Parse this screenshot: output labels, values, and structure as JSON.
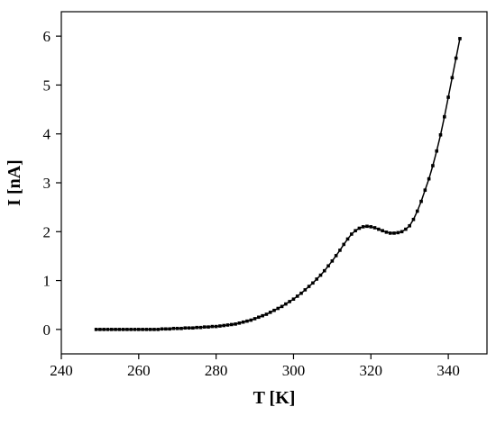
{
  "chart_data": {
    "type": "line",
    "xlabel": "T [K]",
    "ylabel": "I [nA]",
    "x": [
      249,
      250,
      251,
      252,
      253,
      254,
      255,
      256,
      257,
      258,
      259,
      260,
      261,
      262,
      263,
      264,
      265,
      266,
      267,
      268,
      269,
      270,
      271,
      272,
      273,
      274,
      275,
      276,
      277,
      278,
      279,
      280,
      281,
      282,
      283,
      284,
      285,
      286,
      287,
      288,
      289,
      290,
      291,
      292,
      293,
      294,
      295,
      296,
      297,
      298,
      299,
      300,
      301,
      302,
      303,
      304,
      305,
      306,
      307,
      308,
      309,
      310,
      311,
      312,
      313,
      314,
      315,
      316,
      317,
      318,
      319,
      320,
      321,
      322,
      323,
      324,
      325,
      326,
      327,
      328,
      329,
      330,
      331,
      332,
      333,
      334,
      335,
      336,
      337,
      338,
      339,
      340,
      341,
      342,
      343
    ],
    "series": [
      {
        "name": "I",
        "color": "#000000",
        "values": [
          0,
          0,
          0,
          0,
          0,
          0,
          0,
          0,
          0,
          0,
          0,
          0,
          0,
          0,
          0,
          0,
          0,
          0.01,
          0.01,
          0.01,
          0.02,
          0.02,
          0.02,
          0.03,
          0.03,
          0.03,
          0.04,
          0.04,
          0.05,
          0.05,
          0.06,
          0.06,
          0.07,
          0.08,
          0.09,
          0.1,
          0.11,
          0.13,
          0.15,
          0.17,
          0.19,
          0.22,
          0.25,
          0.28,
          0.31,
          0.35,
          0.39,
          0.43,
          0.47,
          0.52,
          0.57,
          0.62,
          0.68,
          0.74,
          0.81,
          0.88,
          0.95,
          1.03,
          1.11,
          1.2,
          1.3,
          1.4,
          1.51,
          1.62,
          1.74,
          1.85,
          1.95,
          2.02,
          2.07,
          2.1,
          2.11,
          2.1,
          2.08,
          2.05,
          2.02,
          1.99,
          1.97,
          1.97,
          1.98,
          2.0,
          2.05,
          2.12,
          2.25,
          2.42,
          2.62,
          2.85,
          3.08,
          3.35,
          3.65,
          3.98,
          4.35,
          4.75,
          5.15,
          5.55,
          5.95
        ]
      }
    ],
    "xlim": [
      240,
      350
    ],
    "xticks": [
      240,
      260,
      280,
      300,
      320,
      340
    ],
    "ylim": [
      -0.5,
      6.5
    ],
    "yticks": [
      0,
      1,
      2,
      3,
      4,
      5,
      6
    ]
  }
}
